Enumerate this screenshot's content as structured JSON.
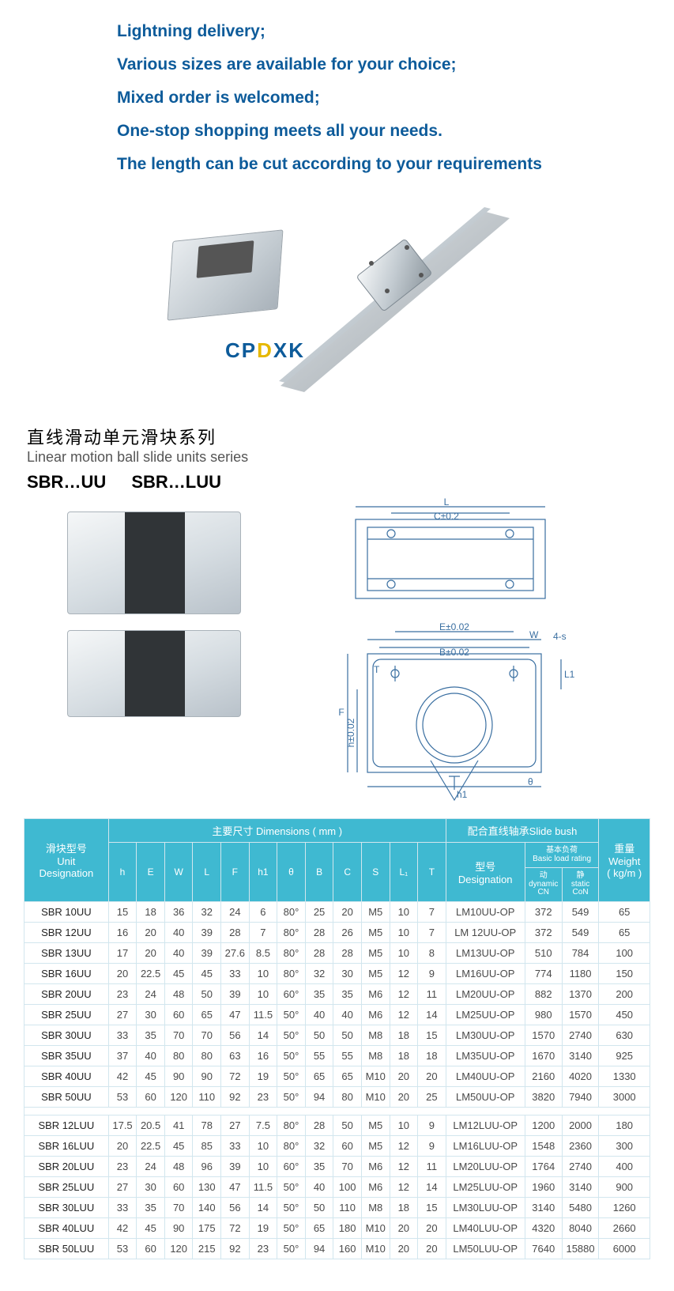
{
  "promo": {
    "l1": "Lightning delivery;",
    "l2": "Various sizes are available for your choice;",
    "l3": "Mixed order is welcomed;",
    "l4": "One-stop shopping meets all your needs.",
    "l5": "The length can be cut according to your requirements"
  },
  "brand": "CPDXK",
  "series": {
    "cn": "直线滑动单元滑块系列",
    "en": "Linear motion ball slide units series",
    "code1": "SBR…UU",
    "code2": "SBR…LUU"
  },
  "diagram_labels": {
    "L": "L",
    "C": "C±0.2",
    "E": "E±0.02",
    "W": "W",
    "fours": "4-s",
    "B": "B±0.02",
    "T": "T",
    "L1": "L1",
    "F": "F",
    "h": "h±0.02",
    "h1": "h1",
    "theta": "θ"
  },
  "table": {
    "group1_cn": "滑块型号",
    "group1_en1": "Unit",
    "group1_en2": "Designation",
    "group2": "主要尺寸  Dimensions ( mm )",
    "group3": "配合直线轴承Slide bush",
    "group4_cn": "重量",
    "group4_en1": "Weight",
    "group4_en2": "( kg/m )",
    "cols_dim": [
      "h",
      "E",
      "W",
      "L",
      "F",
      "h1",
      "θ",
      "B",
      "C",
      "S",
      "L₁",
      "T"
    ],
    "bush_design_cn": "型号",
    "bush_design_en": "Designation",
    "bush_load_cn": "基本负荷",
    "bush_load_en": "Basic load rating",
    "bush_dyn1": "动",
    "bush_dyn2": "dynamic",
    "bush_dyn3": "CN",
    "bush_stat1": "静",
    "bush_stat2": "static",
    "bush_stat3": "CoN",
    "rows_a": [
      [
        "SBR 10UU",
        "15",
        "18",
        "36",
        "32",
        "24",
        "6",
        "80°",
        "25",
        "20",
        "M5",
        "10",
        "7",
        "LM10UU-OP",
        "372",
        "549",
        "65"
      ],
      [
        "SBR 12UU",
        "16",
        "20",
        "40",
        "39",
        "28",
        "7",
        "80°",
        "28",
        "26",
        "M5",
        "10",
        "7",
        "LM 12UU-OP",
        "372",
        "549",
        "65"
      ],
      [
        "SBR 13UU",
        "17",
        "20",
        "40",
        "39",
        "27.6",
        "8.5",
        "80°",
        "28",
        "28",
        "M5",
        "10",
        "8",
        "LM13UU-OP",
        "510",
        "784",
        "100"
      ],
      [
        "SBR 16UU",
        "20",
        "22.5",
        "45",
        "45",
        "33",
        "10",
        "80°",
        "32",
        "30",
        "M5",
        "12",
        "9",
        "LM16UU-OP",
        "774",
        "1180",
        "150"
      ],
      [
        "SBR 20UU",
        "23",
        "24",
        "48",
        "50",
        "39",
        "10",
        "60°",
        "35",
        "35",
        "M6",
        "12",
        "11",
        "LM20UU-OP",
        "882",
        "1370",
        "200"
      ],
      [
        "SBR 25UU",
        "27",
        "30",
        "60",
        "65",
        "47",
        "11.5",
        "50°",
        "40",
        "40",
        "M6",
        "12",
        "14",
        "LM25UU-OP",
        "980",
        "1570",
        "450"
      ],
      [
        "SBR 30UU",
        "33",
        "35",
        "70",
        "70",
        "56",
        "14",
        "50°",
        "50",
        "50",
        "M8",
        "18",
        "15",
        "LM30UU-OP",
        "1570",
        "2740",
        "630"
      ],
      [
        "SBR 35UU",
        "37",
        "40",
        "80",
        "80",
        "63",
        "16",
        "50°",
        "55",
        "55",
        "M8",
        "18",
        "18",
        "LM35UU-OP",
        "1670",
        "3140",
        "925"
      ],
      [
        "SBR 40UU",
        "42",
        "45",
        "90",
        "90",
        "72",
        "19",
        "50°",
        "65",
        "65",
        "M10",
        "20",
        "20",
        "LM40UU-OP",
        "2160",
        "4020",
        "1330"
      ],
      [
        "SBR 50UU",
        "53",
        "60",
        "120",
        "110",
        "92",
        "23",
        "50°",
        "94",
        "80",
        "M10",
        "20",
        "25",
        "LM50UU-OP",
        "3820",
        "7940",
        "3000"
      ]
    ],
    "rows_b": [
      [
        "SBR 12LUU",
        "17.5",
        "20.5",
        "41",
        "78",
        "27",
        "7.5",
        "80°",
        "28",
        "50",
        "M5",
        "10",
        "9",
        "LM12LUU-OP",
        "1200",
        "2000",
        "180"
      ],
      [
        "SBR 16LUU",
        "20",
        "22.5",
        "45",
        "85",
        "33",
        "10",
        "80°",
        "32",
        "60",
        "M5",
        "12",
        "9",
        "LM16LUU-OP",
        "1548",
        "2360",
        "300"
      ],
      [
        "SBR 20LUU",
        "23",
        "24",
        "48",
        "96",
        "39",
        "10",
        "60°",
        "35",
        "70",
        "M6",
        "12",
        "11",
        "LM20LUU-OP",
        "1764",
        "2740",
        "400"
      ],
      [
        "SBR 25LUU",
        "27",
        "30",
        "60",
        "130",
        "47",
        "11.5",
        "50°",
        "40",
        "100",
        "M6",
        "12",
        "14",
        "LM25LUU-OP",
        "1960",
        "3140",
        "900"
      ],
      [
        "SBR 30LUU",
        "33",
        "35",
        "70",
        "140",
        "56",
        "14",
        "50°",
        "50",
        "110",
        "M8",
        "18",
        "15",
        "LM30LUU-OP",
        "3140",
        "5480",
        "1260"
      ],
      [
        "SBR 40LUU",
        "42",
        "45",
        "90",
        "175",
        "72",
        "19",
        "50°",
        "65",
        "180",
        "M10",
        "20",
        "20",
        "LM40LUU-OP",
        "4320",
        "8040",
        "2660"
      ],
      [
        "SBR 50LUU",
        "53",
        "60",
        "120",
        "215",
        "92",
        "23",
        "50°",
        "94",
        "160",
        "M10",
        "20",
        "20",
        "LM50LUU-OP",
        "7640",
        "15880",
        "6000"
      ]
    ]
  },
  "colors": {
    "promo_text": "#0d5b9a",
    "th_bg": "#3fb9d1",
    "border": "#d2e6ee"
  }
}
